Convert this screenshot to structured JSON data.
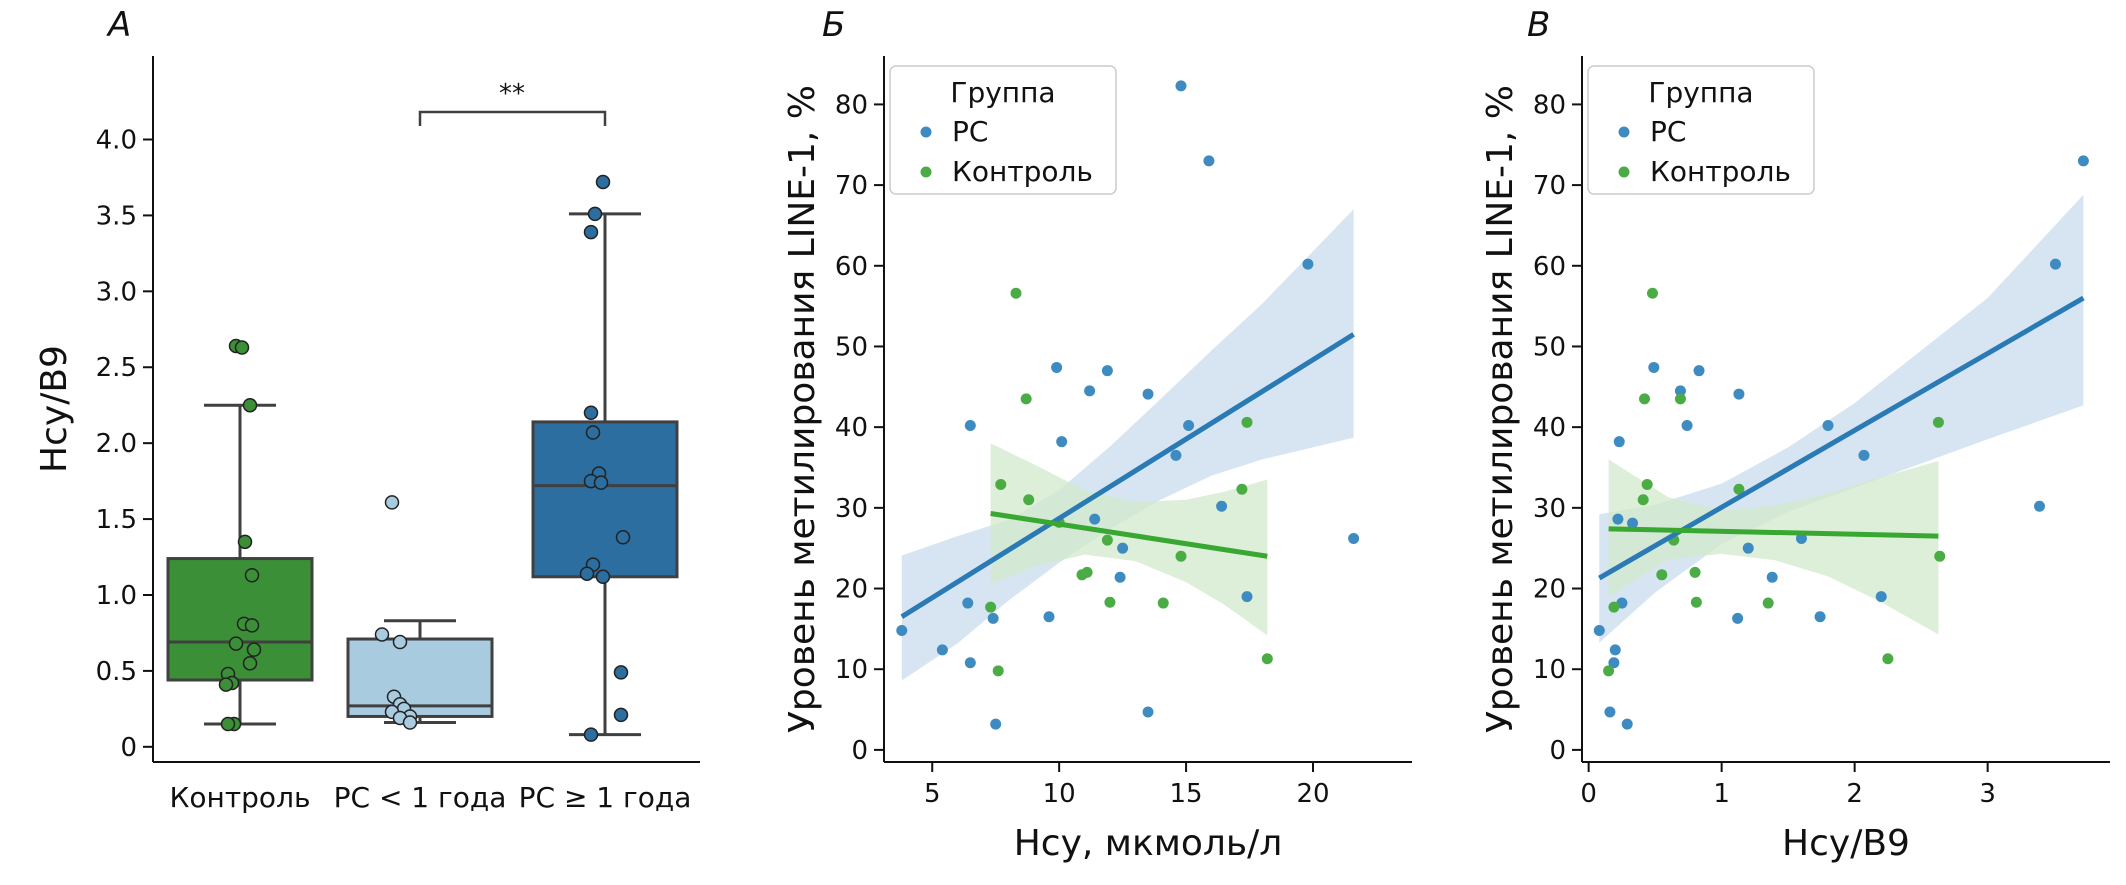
{
  "colors": {
    "control": "#3a8f37",
    "ms_lt1": "#a9cbe0",
    "ms_ge1": "#2b6e9f",
    "ms_point": "#3d8bc1",
    "ms_line": "#2a7ab6",
    "ms_band": "#c9dcee",
    "ctrl_point": "#4bac46",
    "ctrl_line": "#38a832",
    "ctrl_band": "#d1e9cb",
    "box_edge": "#404040"
  },
  "chart_data": [
    {
      "panel": "А",
      "type": "box",
      "ylabel": "Hcy/B9",
      "ylim": [
        -0.1,
        4.55
      ],
      "yticks": [
        "0",
        "0.5",
        "1.0",
        "1.5",
        "2.0",
        "2.5",
        "3.0",
        "3.5",
        "4.0"
      ],
      "significance": "**",
      "categories": [
        "Контроль",
        "РС < 1 года",
        "РС ≥ 1 года"
      ],
      "boxes": [
        {
          "q1": 0.44,
          "median": 0.69,
          "q3": 1.24,
          "whisker_low": 0.15,
          "whisker_high": 2.25,
          "points": [
            2.64,
            2.63,
            2.25,
            1.35,
            1.13,
            0.81,
            0.8,
            0.68,
            0.64,
            0.55,
            0.48,
            0.42,
            0.41,
            0.15,
            0.15
          ]
        },
        {
          "q1": 0.2,
          "median": 0.27,
          "q3": 0.71,
          "whisker_low": 0.16,
          "whisker_high": 0.83,
          "points": [
            1.61,
            0.74,
            0.69,
            0.33,
            0.28,
            0.25,
            0.23,
            0.2,
            0.19,
            0.16
          ]
        },
        {
          "q1": 1.12,
          "median": 1.72,
          "q3": 2.14,
          "whisker_low": 0.08,
          "whisker_high": 3.51,
          "points": [
            3.72,
            3.51,
            3.39,
            2.2,
            2.07,
            1.8,
            1.75,
            1.74,
            1.38,
            1.2,
            1.14,
            1.12,
            0.49,
            0.21,
            0.08
          ]
        }
      ]
    },
    {
      "panel": "Б",
      "type": "scatter",
      "xlabel": "Hcy, мкмоль/л",
      "ylabel": "Уровень метилирования LINE-1, %",
      "xlim": [
        3.1,
        23.9
      ],
      "ylim": [
        -1.5,
        86
      ],
      "xticks": [
        5,
        10,
        15,
        20
      ],
      "yticks": [
        0,
        10,
        20,
        30,
        40,
        50,
        60,
        70,
        80
      ],
      "legend": {
        "title": "Группа",
        "entries": [
          "РС",
          "Контроль"
        ],
        "placement": "top-left"
      },
      "series": [
        {
          "name": "РС",
          "x": [
            3.8,
            5.4,
            6.4,
            6.5,
            6.5,
            7.4,
            7.5,
            9.6,
            9.9,
            10.1,
            11.2,
            11.4,
            11.9,
            12.4,
            12.5,
            13.5,
            13.5,
            14.6,
            14.8,
            15.1,
            15.9,
            16.4,
            17.4,
            19.8,
            21.6
          ],
          "y": [
            14.8,
            12.4,
            18.2,
            10.8,
            40.2,
            16.3,
            3.2,
            16.5,
            47.4,
            38.2,
            44.5,
            28.6,
            47.0,
            21.4,
            25.0,
            4.7,
            44.1,
            36.5,
            82.3,
            40.2,
            73.0,
            30.2,
            19.0,
            60.2,
            26.2
          ],
          "fit": {
            "x": [
              3.8,
              21.6
            ],
            "y": [
              16.5,
              51.5
            ],
            "band_x": [
              3.8,
              6.0,
              8.0,
              10.0,
              12.0,
              14.0,
              16.0,
              18.0,
              21.6
            ],
            "band_lo": [
              8.6,
              13.2,
              18.5,
              23.2,
              27.4,
              31.0,
              34.0,
              36.0,
              38.7
            ],
            "band_hi": [
              24.1,
              26.5,
              28.5,
              32.2,
              37.6,
              43.5,
              49.5,
              55.3,
              67.0
            ]
          }
        },
        {
          "name": "Контроль",
          "x": [
            7.3,
            7.6,
            7.7,
            8.3,
            8.7,
            8.8,
            10.0,
            10.9,
            11.1,
            11.9,
            12.0,
            14.1,
            14.8,
            17.2,
            17.4,
            18.2
          ],
          "y": [
            17.7,
            9.8,
            32.9,
            56.6,
            43.5,
            31.0,
            28.2,
            21.7,
            22.0,
            26.0,
            18.3,
            18.2,
            24.0,
            32.3,
            40.6,
            11.3
          ],
          "fit": {
            "x": [
              7.3,
              18.2
            ],
            "y": [
              29.3,
              24.0
            ],
            "band_x": [
              7.3,
              9.0,
              11.0,
              13.0,
              15.0,
              16.5,
              18.2
            ],
            "band_lo": [
              20.5,
              22.7,
              24.2,
              23.4,
              20.8,
              18.0,
              14.2
            ],
            "band_hi": [
              38.0,
              35.4,
              32.2,
              30.7,
              31.0,
              32.0,
              33.5
            ]
          }
        }
      ]
    },
    {
      "panel": "В",
      "type": "scatter",
      "xlabel": "Hcy/B9",
      "ylabel": "Уровень метилирования LINE-1, %",
      "xlim": [
        -0.05,
        3.92
      ],
      "ylim": [
        -1.5,
        86
      ],
      "xticks": [
        0,
        1,
        2,
        3
      ],
      "yticks": [
        0,
        10,
        20,
        30,
        40,
        50,
        60,
        70,
        80
      ],
      "legend": {
        "title": "Группа",
        "entries": [
          "РС",
          "Контроль"
        ],
        "placement": "top-left"
      },
      "series": [
        {
          "name": "РС",
          "x": [
            0.08,
            0.16,
            0.19,
            0.2,
            0.22,
            0.23,
            0.25,
            0.29,
            0.33,
            0.49,
            0.69,
            0.74,
            0.83,
            1.12,
            1.13,
            1.2,
            1.38,
            1.6,
            1.74,
            1.8,
            2.07,
            2.2,
            3.39,
            3.51,
            3.72
          ],
          "y": [
            14.8,
            4.7,
            10.8,
            12.4,
            28.6,
            38.2,
            18.2,
            3.2,
            28.1,
            47.4,
            44.5,
            40.2,
            47.0,
            16.3,
            44.1,
            25.0,
            21.4,
            26.2,
            16.5,
            40.2,
            36.5,
            19.0,
            30.2,
            60.2,
            73.0
          ],
          "fit": {
            "x": [
              0.08,
              3.72
            ],
            "y": [
              21.3,
              56.0
            ],
            "band_x": [
              0.08,
              0.5,
              1.0,
              1.5,
              2.0,
              2.5,
              3.0,
              3.72
            ],
            "band_lo": [
              13.3,
              19.5,
              25.5,
              29.5,
              32.5,
              35.5,
              38.5,
              42.7
            ],
            "band_hi": [
              29.2,
              30.4,
              33.0,
              37.5,
              43.0,
              49.5,
              56.0,
              68.8
            ]
          }
        },
        {
          "name": "Контроль",
          "x": [
            0.15,
            0.19,
            0.41,
            0.42,
            0.44,
            0.48,
            0.55,
            0.64,
            0.69,
            0.8,
            0.81,
            1.13,
            1.35,
            2.25,
            2.63,
            2.64
          ],
          "y": [
            9.8,
            17.7,
            31.0,
            43.5,
            32.9,
            56.6,
            21.7,
            26.0,
            43.5,
            22.0,
            18.3,
            32.3,
            18.2,
            11.3,
            40.6,
            24.0
          ],
          "fit": {
            "x": [
              0.15,
              2.63
            ],
            "y": [
              27.4,
              26.5
            ],
            "band_x": [
              0.15,
              0.6,
              1.0,
              1.4,
              1.8,
              2.2,
              2.63
            ],
            "band_lo": [
              19.0,
              23.6,
              24.3,
              23.5,
              21.5,
              18.3,
              14.3
            ],
            "band_hi": [
              36.0,
              31.3,
              29.7,
              30.3,
              31.8,
              33.8,
              35.8
            ]
          }
        }
      ]
    }
  ]
}
